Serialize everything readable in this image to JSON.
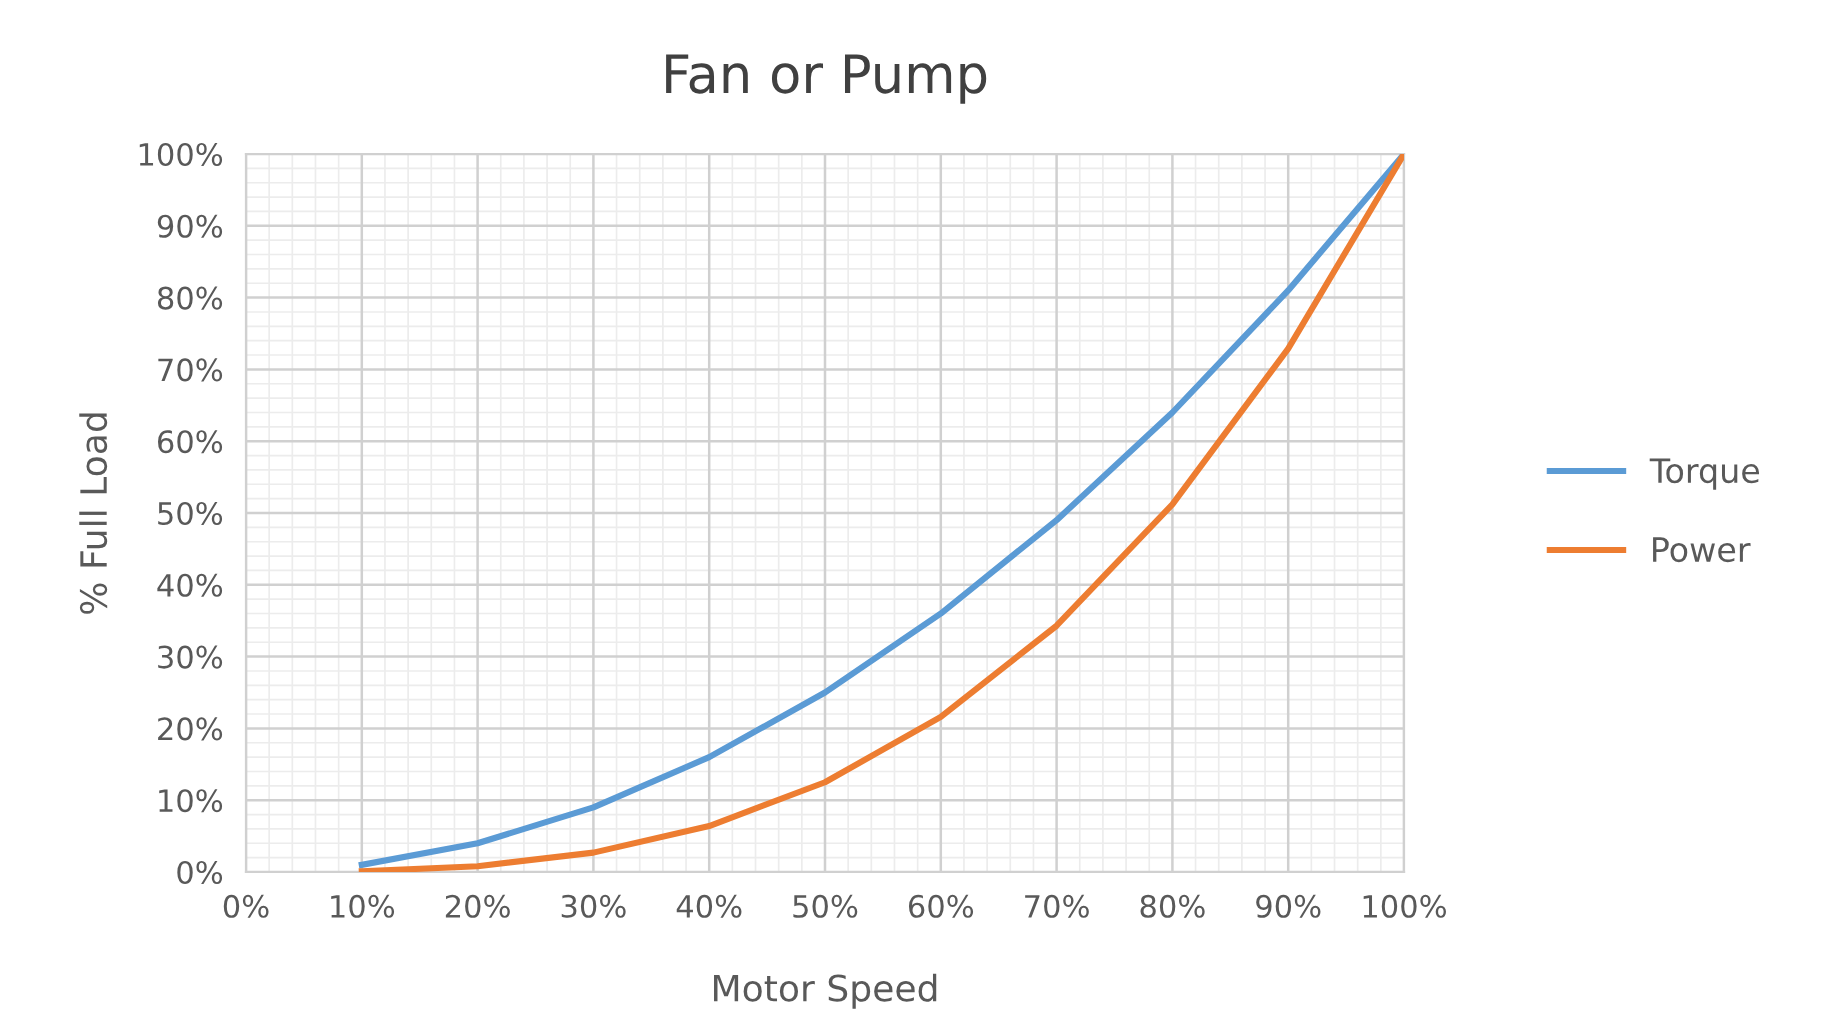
{
  "chart_data": {
    "type": "line",
    "title": "Fan or Pump",
    "xlabel": "Motor Speed",
    "ylabel": "% Full Load",
    "x": [
      10,
      20,
      30,
      40,
      50,
      60,
      70,
      80,
      90,
      100
    ],
    "series": [
      {
        "name": "Torque",
        "color": "#5b9bd5",
        "values": [
          1,
          4,
          9,
          16,
          25,
          36,
          49,
          64,
          81,
          100
        ]
      },
      {
        "name": "Power",
        "color": "#ed7d31",
        "values": [
          0.1,
          0.8,
          2.7,
          6.4,
          12.5,
          21.6,
          34.3,
          51.2,
          72.9,
          100
        ]
      }
    ],
    "xlim": [
      0,
      100
    ],
    "ylim": [
      0,
      100
    ],
    "xticks": [
      {
        "value": 0,
        "label": "0%"
      },
      {
        "value": 10,
        "label": "10%"
      },
      {
        "value": 20,
        "label": "20%"
      },
      {
        "value": 30,
        "label": "30%"
      },
      {
        "value": 40,
        "label": "40%"
      },
      {
        "value": 50,
        "label": "50%"
      },
      {
        "value": 60,
        "label": "60%"
      },
      {
        "value": 70,
        "label": "70%"
      },
      {
        "value": 80,
        "label": "80%"
      },
      {
        "value": 90,
        "label": "90%"
      },
      {
        "value": 100,
        "label": "100%"
      }
    ],
    "yticks": [
      {
        "value": 0,
        "label": "0%"
      },
      {
        "value": 10,
        "label": "10%"
      },
      {
        "value": 20,
        "label": "20%"
      },
      {
        "value": 30,
        "label": "30%"
      },
      {
        "value": 40,
        "label": "40%"
      },
      {
        "value": 50,
        "label": "50%"
      },
      {
        "value": 60,
        "label": "60%"
      },
      {
        "value": 70,
        "label": "70%"
      },
      {
        "value": 80,
        "label": "80%"
      },
      {
        "value": 90,
        "label": "90%"
      },
      {
        "value": 100,
        "label": "100%"
      }
    ],
    "grid": true,
    "legend": "right",
    "marker": "none",
    "line_style": "solid"
  }
}
